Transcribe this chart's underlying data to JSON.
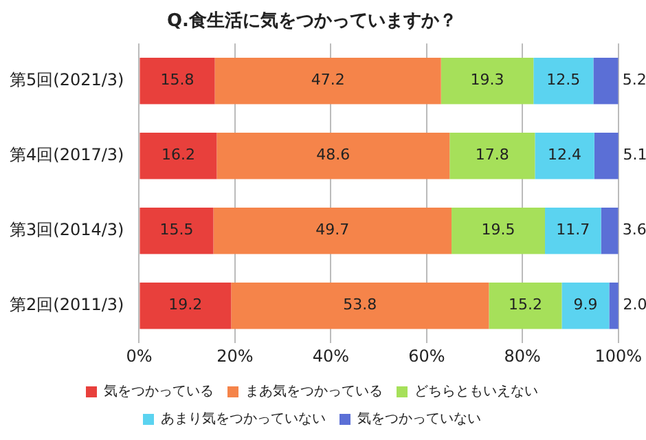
{
  "chart_data": {
    "type": "bar",
    "orientation": "horizontal",
    "stacked": true,
    "title": "Q.食生活に気をつかっていますか？",
    "categories": [
      "第5回(2021/3)",
      "第4回(2017/3)",
      "第3回(2014/3)",
      "第2回(2011/3)"
    ],
    "series": [
      {
        "name": "気をつかっている",
        "color": "#e8403c",
        "values": [
          15.8,
          16.2,
          15.5,
          19.2
        ],
        "value_labels": [
          "15.8",
          "16.2",
          "15.5",
          "19.2"
        ]
      },
      {
        "name": "まあ気をつかっている",
        "color": "#f5844a",
        "values": [
          47.2,
          48.6,
          49.7,
          53.8
        ],
        "value_labels": [
          "47.2",
          "48.6",
          "49.7",
          "53.8"
        ]
      },
      {
        "name": "どちらともいえない",
        "color": "#a6e05a",
        "values": [
          19.3,
          17.8,
          19.5,
          15.2
        ],
        "value_labels": [
          "19.3",
          "17.8",
          "19.5",
          "15.2"
        ]
      },
      {
        "name": "あまり気をつかっていない",
        "color": "#5bd3f0",
        "values": [
          12.5,
          12.4,
          11.7,
          9.9
        ],
        "value_labels": [
          "12.5",
          "12.4",
          "11.7",
          "9.9"
        ]
      },
      {
        "name": "気をつかっていない",
        "color": "#5b6fd6",
        "values": [
          5.2,
          5.1,
          3.6,
          2.0
        ],
        "value_labels": [
          "5.2",
          "5.1",
          "3.6",
          "2.0"
        ]
      }
    ],
    "xlim": [
      0,
      100
    ],
    "xticks": [
      {
        "value": 0,
        "label": "0%"
      },
      {
        "value": 20,
        "label": "20%"
      },
      {
        "value": 40,
        "label": "40%"
      },
      {
        "value": 60,
        "label": "60%"
      },
      {
        "value": 80,
        "label": "80%"
      },
      {
        "value": 100,
        "label": "100%"
      }
    ],
    "grid": "x",
    "legend": "bottom"
  }
}
